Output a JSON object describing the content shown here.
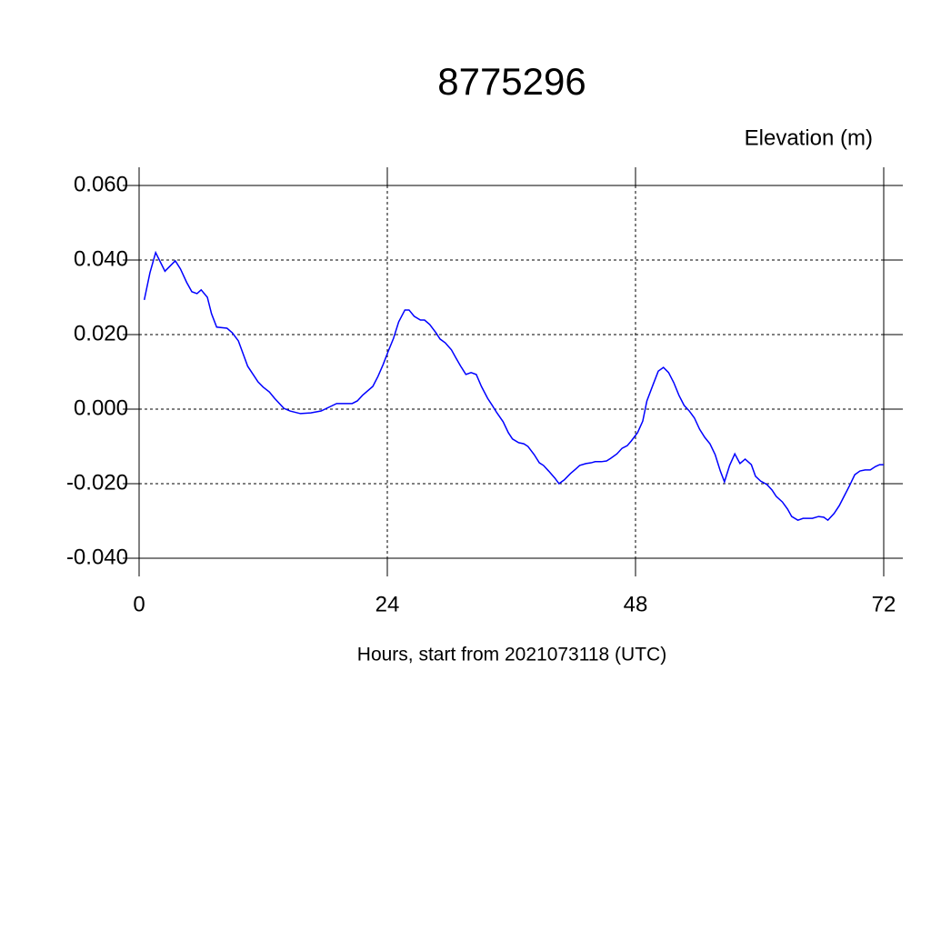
{
  "chart_data": {
    "type": "line",
    "title": "8775296",
    "ylabel": "Elevation (m)",
    "xlabel": "Hours, start from 2021073118 (UTC)",
    "xlim": [
      0,
      72
    ],
    "xticks": [
      0,
      24,
      48,
      72
    ],
    "ylim": [
      -0.04,
      0.06
    ],
    "yticks": [
      {
        "value": 0.06,
        "label": "0.060"
      },
      {
        "value": 0.04,
        "label": "0.040"
      },
      {
        "value": 0.02,
        "label": "0.020"
      },
      {
        "value": 0,
        "label": "0.000"
      },
      {
        "value": -0.02,
        "label": "-0.020"
      },
      {
        "value": -0.04,
        "label": "-0.040"
      }
    ],
    "grid": true,
    "color": "#0000ff",
    "x": [
      0.5,
      1.05,
      1.6,
      2.5,
      3.5,
      4,
      4.6,
      5.1,
      5.6,
      6,
      6.6,
      7,
      7.5,
      8.5,
      9,
      9.6,
      10.5,
      11.5,
      12,
      12.6,
      13.1,
      14,
      14.6,
      15.6,
      16.6,
      17.6,
      18.5,
      19.1,
      20.1,
      20.6,
      21.1,
      21.6,
      22.6,
      23.1,
      23.6,
      24.1,
      24.6,
      25.1,
      25.7,
      26.1,
      26.6,
      27.2,
      27.6,
      28.1,
      28.7,
      29.1,
      29.6,
      30.2,
      30.6,
      31.1,
      31.6,
      32.1,
      32.6,
      33.1,
      33.7,
      34.1,
      34.6,
      35.2,
      35.7,
      36.1,
      36.7,
      37.2,
      37.6,
      38.2,
      38.7,
      39.1,
      39.6,
      40.2,
      40.6,
      41.1,
      41.7,
      42.2,
      42.6,
      43.2,
      43.7,
      44.1,
      44.7,
      45.2,
      45.6,
      46.2,
      46.7,
      47.2,
      47.6,
      48.2,
      48.7,
      49.1,
      49.7,
      50.2,
      50.7,
      51.2,
      51.7,
      52.2,
      52.7,
      53.2,
      53.7,
      54.2,
      54.7,
      55.2,
      55.7,
      56.2,
      56.6,
      57.1,
      57.6,
      58.1,
      58.6,
      59.2,
      59.6,
      60.1,
      60.7,
      61.2,
      61.6,
      62.2,
      62.7,
      63.1,
      63.7,
      64.2,
      64.7,
      65.1,
      65.7,
      66.2,
      66.6,
      67.2,
      67.7,
      68.2,
      68.7,
      69.2,
      69.7,
      70.2,
      70.7,
      71.2,
      71.6,
      72
    ],
    "values": [
      0.0293,
      0.0366,
      0.042,
      0.037,
      0.0398,
      0.0376,
      0.034,
      0.0315,
      0.031,
      0.032,
      0.03,
      0.0256,
      0.022,
      0.0217,
      0.0205,
      0.0183,
      0.0115,
      0.0073,
      0.0059,
      0.0046,
      0.0029,
      0.0002,
      -0.0005,
      -0.0012,
      -0.001,
      -0.0005,
      0.0007,
      0.0015,
      0.0015,
      0.0015,
      0.0022,
      0.0037,
      0.0061,
      0.0088,
      0.012,
      0.0156,
      0.019,
      0.0234,
      0.0266,
      0.0266,
      0.0249,
      0.0239,
      0.0239,
      0.0227,
      0.0205,
      0.0188,
      0.0178,
      0.0159,
      0.0139,
      0.0115,
      0.0093,
      0.0098,
      0.0093,
      0.0061,
      0.0029,
      0.0012,
      -0.001,
      -0.0034,
      -0.0063,
      -0.008,
      -0.009,
      -0.0093,
      -0.01,
      -0.0122,
      -0.0144,
      -0.0151,
      -0.0166,
      -0.0185,
      -0.02,
      -0.019,
      -0.0173,
      -0.0161,
      -0.0151,
      -0.0146,
      -0.0144,
      -0.0141,
      -0.0141,
      -0.0139,
      -0.0132,
      -0.012,
      -0.0105,
      -0.0098,
      -0.0085,
      -0.0063,
      -0.0032,
      0.0022,
      0.0066,
      0.0102,
      0.0112,
      0.0098,
      0.0071,
      0.0037,
      0.001,
      -0.0005,
      -0.0024,
      -0.0054,
      -0.0076,
      -0.0093,
      -0.0122,
      -0.0166,
      -0.0195,
      -0.0151,
      -0.012,
      -0.0146,
      -0.0134,
      -0.0149,
      -0.018,
      -0.0193,
      -0.0202,
      -0.0217,
      -0.0234,
      -0.0249,
      -0.0268,
      -0.0288,
      -0.0298,
      -0.0293,
      -0.0293,
      -0.0293,
      -0.0288,
      -0.029,
      -0.0298,
      -0.028,
      -0.0259,
      -0.0232,
      -0.0205,
      -0.0176,
      -0.0166,
      -0.0163,
      -0.0163,
      -0.0154,
      -0.0149,
      -0.0149
    ]
  }
}
